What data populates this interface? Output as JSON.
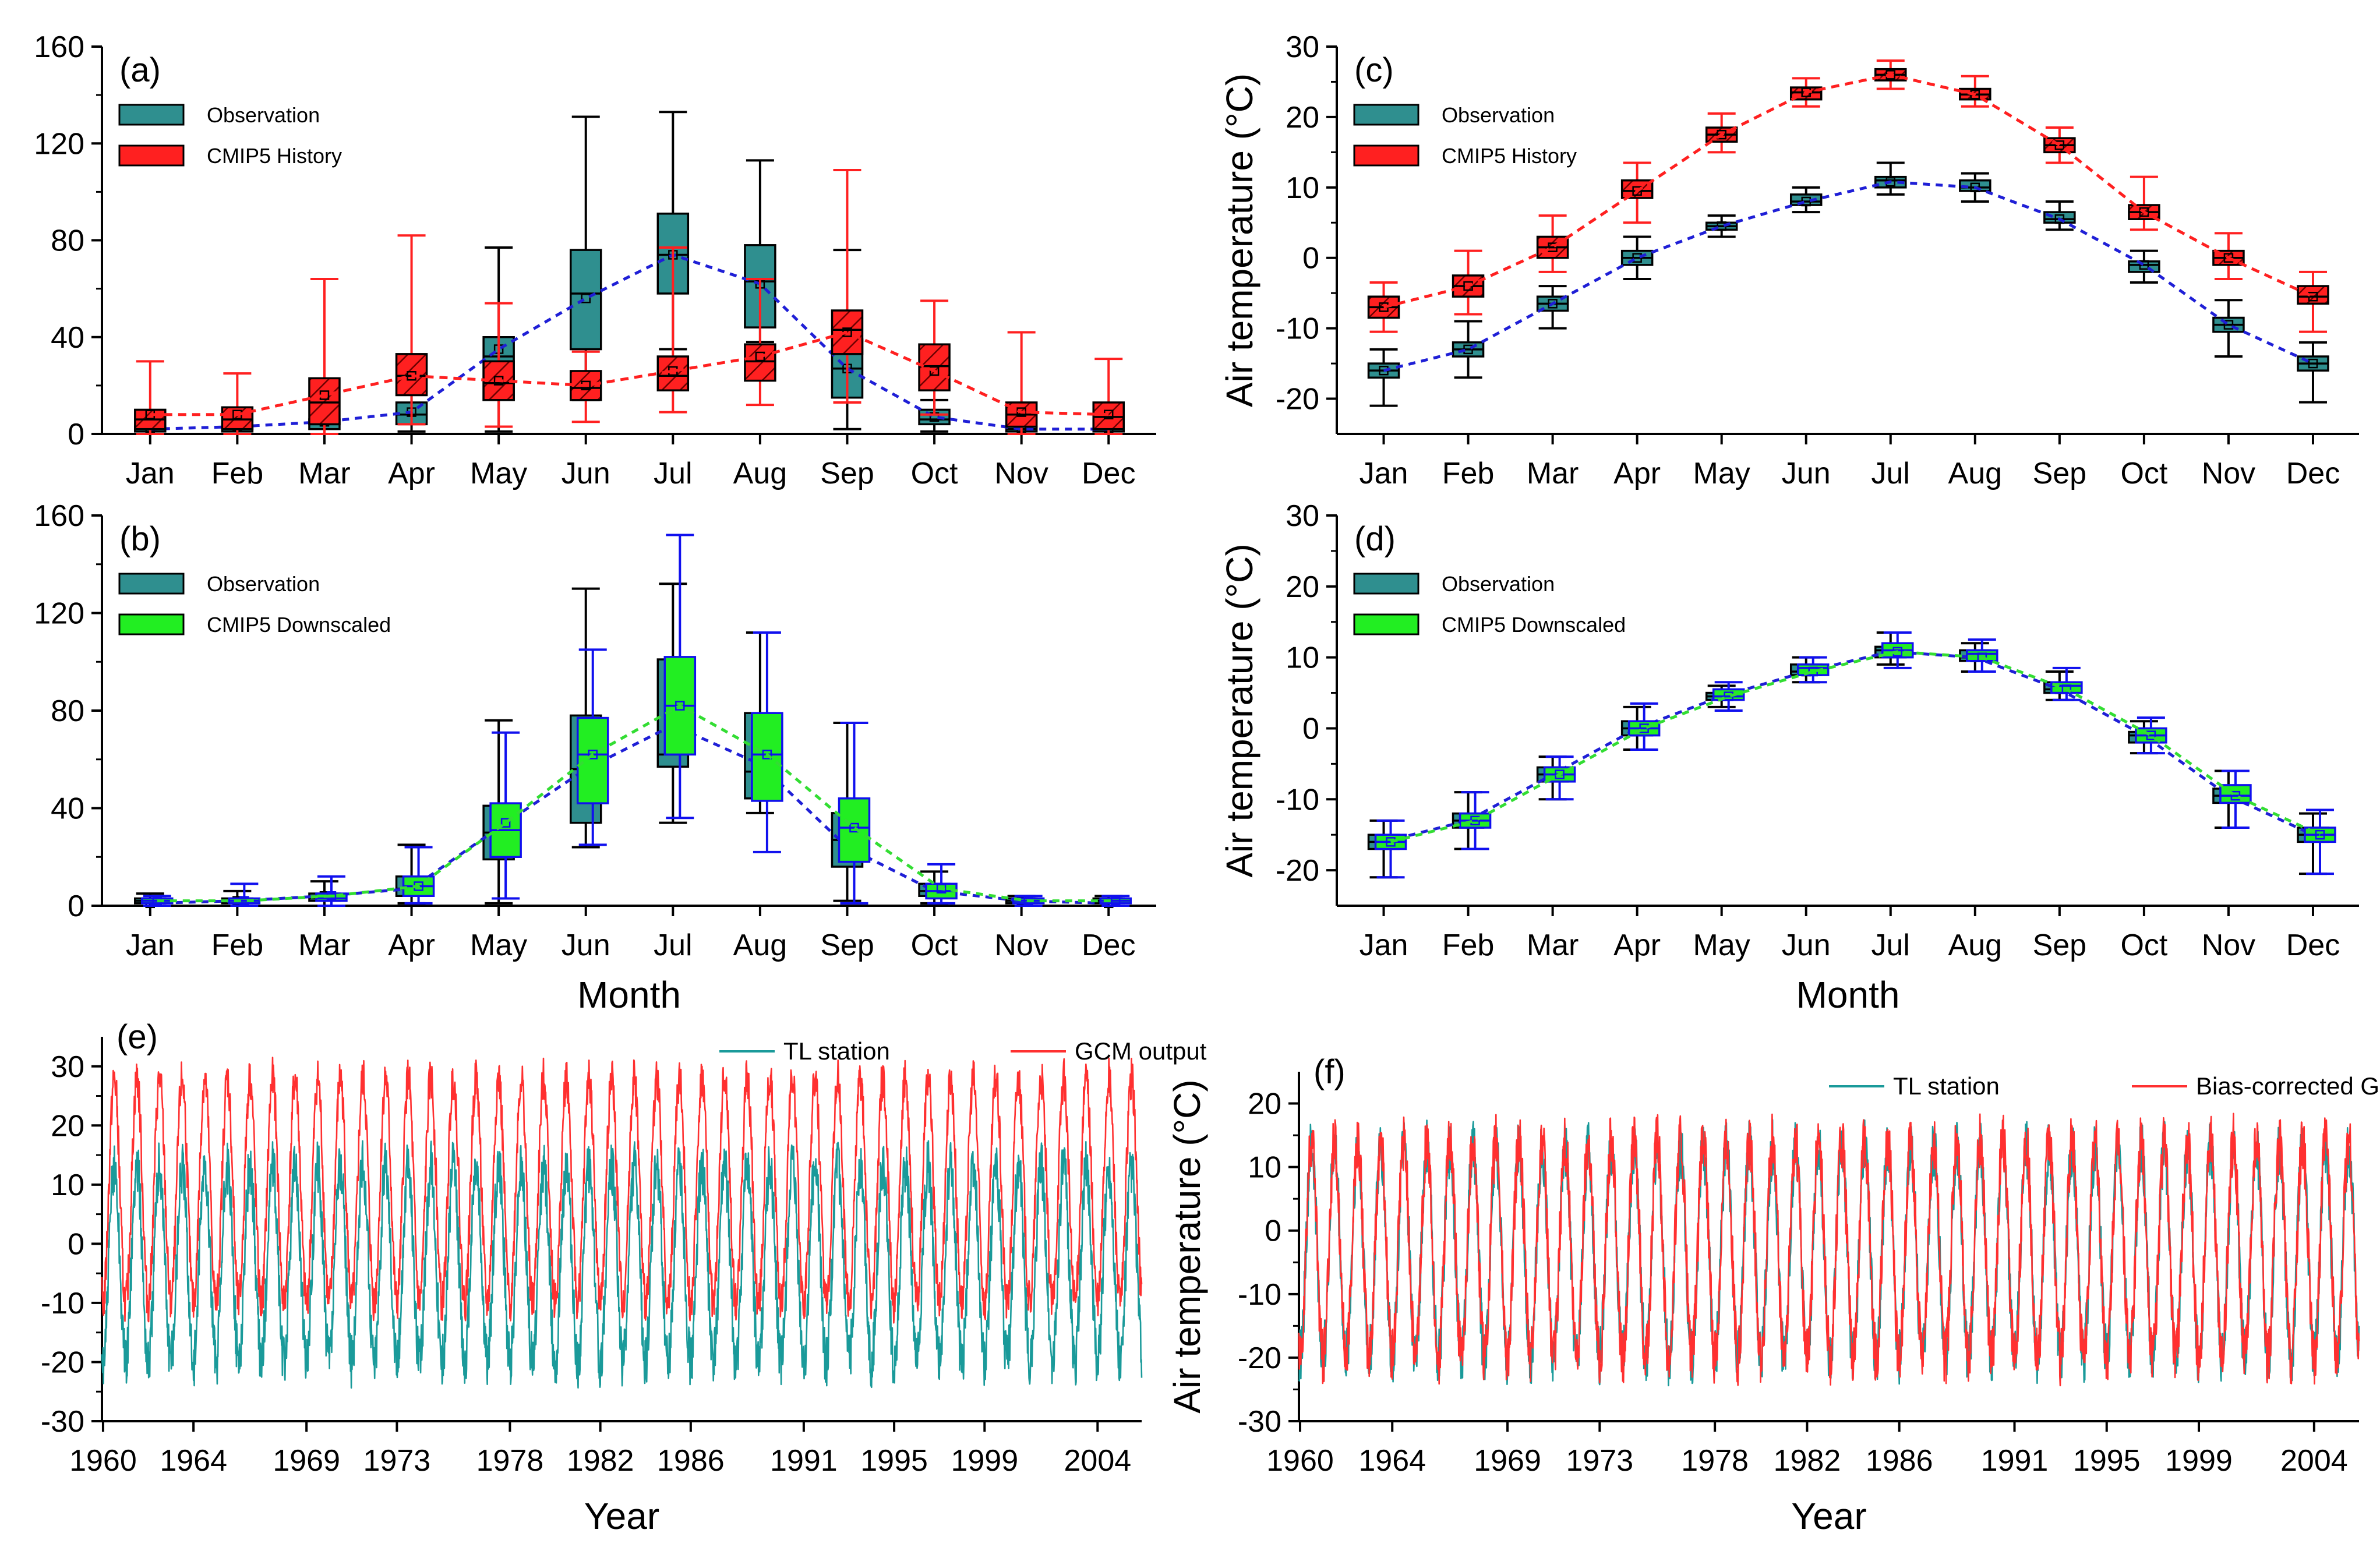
{
  "colors": {
    "obs_fill": "#2f8f8f",
    "hist_fill": "#ff2020",
    "down_fill": "#22ee22",
    "down_edge": "#1010ee",
    "obs_line": "#1f1fd6",
    "hist_line": "#ff2020",
    "down_line": "#33dd33",
    "ts_obs": "#1a9a9a",
    "ts_gcm": "#ff3030"
  },
  "chart_data": [
    {
      "id": "a",
      "panel_label": "(a)",
      "type": "box",
      "months": [
        "Jan",
        "Feb",
        "Mar",
        "Apr",
        "May",
        "Jun",
        "Jul",
        "Aug",
        "Sep",
        "Oct",
        "Nov",
        "Dec"
      ],
      "ylim": [
        0,
        160
      ],
      "yticks": [
        "0",
        "40",
        "80",
        "120",
        "160"
      ],
      "legend": [
        "Observation",
        "CMIP5 History"
      ],
      "series": [
        {
          "name": "Observation",
          "role": "obs",
          "stats": [
            [
              0,
              1,
              2,
              3,
              5
            ],
            [
              0,
              1,
              3,
              3,
              6
            ],
            [
              0,
              2,
              4,
              6,
              10
            ],
            [
              1,
              4,
              8,
              13,
              22
            ],
            [
              1,
              14,
              32,
              40,
              77
            ],
            [
              14,
              35,
              58,
              76,
              131
            ],
            [
              35,
              58,
              74,
              91,
              133
            ],
            [
              38,
              44,
              63,
              78,
              113
            ],
            [
              2,
              15,
              27,
              39,
              76
            ],
            [
              1,
              4,
              6,
              10,
              14
            ],
            [
              0,
              1,
              2,
              3,
              5
            ],
            [
              0,
              1,
              2,
              3,
              5
            ]
          ],
          "means": [
            2,
            3,
            5,
            9,
            35,
            56,
            74,
            62,
            27,
            7,
            2,
            2
          ]
        },
        {
          "name": "CMIP5 History",
          "role": "hist",
          "stats": [
            [
              0,
              2,
              6,
              10,
              30
            ],
            [
              0,
              2,
              6,
              11,
              25
            ],
            [
              0,
              4,
              13,
              23,
              64
            ],
            [
              4,
              16,
              24,
              33,
              82
            ],
            [
              3,
              14,
              21,
              30,
              54
            ],
            [
              5,
              14,
              19,
              26,
              34
            ],
            [
              9,
              18,
              24,
              32,
              77
            ],
            [
              12,
              22,
              30,
              37,
              64
            ],
            [
              13,
              33,
              43,
              51,
              109
            ],
            [
              8,
              18,
              28,
              37,
              55
            ],
            [
              0,
              3,
              8,
              13,
              42
            ],
            [
              0,
              2,
              7,
              13,
              31
            ]
          ],
          "means": [
            8,
            8,
            16,
            24,
            22,
            20,
            26,
            32,
            42,
            26,
            9,
            8
          ]
        }
      ]
    },
    {
      "id": "b",
      "panel_label": "(b)",
      "type": "box",
      "months": [
        "Jan",
        "Feb",
        "Mar",
        "Apr",
        "May",
        "Jun",
        "Jul",
        "Aug",
        "Sep",
        "Oct",
        "Nov",
        "Dec"
      ],
      "ylim": [
        0,
        160
      ],
      "yticks": [
        "0",
        "40",
        "80",
        "120",
        "160"
      ],
      "legend": [
        "Observation",
        "CMIP5 Downscaled"
      ],
      "xlabel": "Month",
      "series": [
        {
          "name": "Observation",
          "role": "obs",
          "stats": [
            [
              0,
              1,
              2,
              3,
              5
            ],
            [
              0,
              1,
              2,
              3,
              6
            ],
            [
              0,
              2,
              3,
              5,
              10
            ],
            [
              1,
              4,
              7,
              12,
              25
            ],
            [
              1,
              19,
              30,
              41,
              76
            ],
            [
              24,
              34,
              56,
              78,
              130
            ],
            [
              34,
              57,
              62,
              101,
              132
            ],
            [
              38,
              44,
              55,
              79,
              112
            ],
            [
              2,
              16,
              27,
              38,
              75
            ],
            [
              1,
              4,
              6,
              9,
              14
            ],
            [
              0,
              1,
              2,
              3,
              4
            ],
            [
              0,
              1,
              2,
              3,
              4
            ]
          ],
          "means": [
            1,
            2,
            4,
            7,
            32,
            56,
            74,
            58,
            24,
            6,
            2,
            1
          ]
        },
        {
          "name": "CMIP5 Downscaled",
          "role": "down",
          "stats": [
            [
              0,
              1,
              2,
              3,
              4
            ],
            [
              0,
              1,
              2,
              3,
              9
            ],
            [
              0,
              2,
              3,
              5,
              12
            ],
            [
              1,
              4,
              8,
              12,
              24
            ],
            [
              3,
              20,
              31,
              42,
              71
            ],
            [
              25,
              42,
              62,
              77,
              105
            ],
            [
              36,
              62,
              82,
              102,
              152
            ],
            [
              22,
              43,
              62,
              79,
              112
            ],
            [
              1,
              18,
              32,
              44,
              75
            ],
            [
              1,
              3,
              6,
              9,
              17
            ],
            [
              0,
              1,
              2,
              3,
              4
            ],
            [
              0,
              1,
              2,
              3,
              4
            ]
          ],
          "means": [
            2,
            2,
            4,
            8,
            34,
            62,
            82,
            62,
            32,
            7,
            2,
            2
          ]
        }
      ]
    },
    {
      "id": "c",
      "panel_label": "(c)",
      "type": "box",
      "months": [
        "Jan",
        "Feb",
        "Mar",
        "Apr",
        "May",
        "Jun",
        "Jul",
        "Aug",
        "Sep",
        "Oct",
        "Nov",
        "Dec"
      ],
      "ylim": [
        -25,
        30
      ],
      "yticks": [
        "-20",
        "-10",
        "0",
        "10",
        "20",
        "30"
      ],
      "ylabel": "Air temperature (°C)",
      "legend": [
        "Observation",
        "CMIP5 History"
      ],
      "series": [
        {
          "name": "Observation",
          "role": "obs",
          "stats": [
            [
              -21,
              -17,
              -16,
              -15,
              -13
            ],
            [
              -17,
              -14,
              -13,
              -12,
              -9
            ],
            [
              -10,
              -7.5,
              -6.5,
              -5.5,
              -4
            ],
            [
              -3,
              -1,
              0,
              1,
              3
            ],
            [
              3,
              4,
              4.5,
              5,
              6
            ],
            [
              6.5,
              7.5,
              8,
              9,
              10
            ],
            [
              9,
              10,
              11,
              11.5,
              13.5
            ],
            [
              8,
              9.5,
              10,
              11,
              12
            ],
            [
              4,
              5,
              5.5,
              6.5,
              8
            ],
            [
              -3.5,
              -2,
              -1,
              -0.5,
              1
            ],
            [
              -14,
              -10.5,
              -9.5,
              -8.5,
              -6
            ],
            [
              -20.5,
              -16,
              -15,
              -14,
              -12
            ]
          ],
          "means": [
            -16,
            -13,
            -6.5,
            0,
            4.5,
            8,
            10.8,
            10,
            5.5,
            -1,
            -9.5,
            -15
          ]
        },
        {
          "name": "CMIP5 History",
          "role": "hist",
          "stats": [
            [
              -10.5,
              -8.5,
              -7,
              -5.5,
              -3.5
            ],
            [
              -8,
              -5.5,
              -4,
              -2.5,
              1
            ],
            [
              -2,
              0,
              1.5,
              3,
              6
            ],
            [
              5,
              8.5,
              9.5,
              11,
              13.5
            ],
            [
              15,
              16.5,
              17.5,
              18.5,
              20.5
            ],
            [
              21.5,
              22.5,
              23.5,
              24.2,
              25.5
            ],
            [
              24,
              25.2,
              26,
              26.8,
              28
            ],
            [
              21.5,
              22.5,
              23.2,
              24,
              25.8
            ],
            [
              13.5,
              15,
              16,
              17,
              18.5
            ],
            [
              4,
              5.5,
              6.5,
              7.5,
              11.5
            ],
            [
              -3,
              -1,
              0,
              1,
              3.5
            ],
            [
              -10.5,
              -6.5,
              -5.5,
              -4,
              -2
            ]
          ],
          "means": [
            -7,
            -4,
            1.5,
            9.5,
            17.5,
            23.5,
            26,
            23.2,
            16,
            6.5,
            0,
            -5.5
          ]
        }
      ]
    },
    {
      "id": "d",
      "panel_label": "(d)",
      "type": "box",
      "months": [
        "Jan",
        "Feb",
        "Mar",
        "Apr",
        "May",
        "Jun",
        "Jul",
        "Aug",
        "Sep",
        "Oct",
        "Nov",
        "Dec"
      ],
      "ylim": [
        -25,
        30
      ],
      "yticks": [
        "-20",
        "-10",
        "0",
        "10",
        "20",
        "30"
      ],
      "ylabel": "Air temperature (°C)",
      "xlabel": "Month",
      "legend": [
        "Observation",
        "CMIP5 Downscaled"
      ],
      "series": [
        {
          "name": "Observation",
          "role": "obs",
          "stats": [
            [
              -21,
              -17,
              -16,
              -15,
              -13
            ],
            [
              -17,
              -14,
              -13,
              -12,
              -9
            ],
            [
              -10,
              -7.5,
              -6.5,
              -5.5,
              -4
            ],
            [
              -3,
              -1,
              0,
              1,
              3
            ],
            [
              3,
              4,
              4.5,
              5,
              6
            ],
            [
              6.5,
              7.5,
              8,
              9,
              10
            ],
            [
              9,
              10,
              11,
              11.5,
              13.5
            ],
            [
              8,
              9.5,
              10,
              11,
              12
            ],
            [
              4,
              5,
              5.5,
              6.5,
              8
            ],
            [
              -3.5,
              -2,
              -1,
              -0.5,
              1
            ],
            [
              -14,
              -10.5,
              -9.5,
              -8.5,
              -6
            ],
            [
              -20.5,
              -16,
              -15,
              -14,
              -12
            ]
          ],
          "means": [
            -16,
            -13,
            -6.5,
            0,
            4.5,
            8,
            10.8,
            10,
            5.5,
            -1,
            -9.5,
            -15
          ]
        },
        {
          "name": "CMIP5 Downscaled",
          "role": "down",
          "stats": [
            [
              -21,
              -17,
              -16,
              -15,
              -13
            ],
            [
              -17,
              -14,
              -13,
              -12,
              -9
            ],
            [
              -10,
              -7.5,
              -6.5,
              -5.5,
              -4
            ],
            [
              -3,
              -1,
              0,
              1,
              3.5
            ],
            [
              2.5,
              4,
              4.5,
              5.5,
              6.5
            ],
            [
              6.5,
              7.5,
              8.5,
              9,
              10
            ],
            [
              8.5,
              10,
              11,
              12,
              13.5
            ],
            [
              8,
              9.5,
              10.5,
              11,
              12.5
            ],
            [
              4,
              5,
              6,
              6.5,
              8.5
            ],
            [
              -3.5,
              -2,
              -1,
              0,
              1.5
            ],
            [
              -14,
              -10.5,
              -9.5,
              -8,
              -6
            ],
            [
              -20.5,
              -16,
              -15,
              -14,
              -11.5
            ]
          ],
          "means": [
            -16,
            -13,
            -6.5,
            0,
            4.5,
            8,
            10.8,
            10,
            5.5,
            -1,
            -9.5,
            -15
          ]
        }
      ]
    },
    {
      "id": "e",
      "panel_label": "(e)",
      "type": "line",
      "xlim": [
        1960,
        2006
      ],
      "ylim": [
        -30,
        35
      ],
      "xticks": [
        "1960",
        "1964",
        "1969",
        "1973",
        "1978",
        "1982",
        "1986",
        "1991",
        "1995",
        "1999",
        "2004"
      ],
      "yticks": [
        "-30",
        "-20",
        "-10",
        "0",
        "10",
        "20",
        "30"
      ],
      "xlabel": "Year",
      "legend": [
        "TL station",
        "GCM output"
      ],
      "series": [
        {
          "name": "TL station",
          "role": "ts_obs",
          "min_approx": -20,
          "max_approx": 13
        },
        {
          "name": "GCM output",
          "role": "ts_gcm",
          "min_approx": -10,
          "max_approx": 28
        }
      ]
    },
    {
      "id": "f",
      "panel_label": "(f)",
      "type": "line",
      "xlim": [
        1960,
        2006
      ],
      "ylim": [
        -30,
        25
      ],
      "xticks": [
        "1960",
        "1964",
        "1969",
        "1973",
        "1978",
        "1982",
        "1986",
        "1991",
        "1995",
        "1999",
        "2004"
      ],
      "yticks": [
        "-30",
        "-20",
        "-10",
        "0",
        "10",
        "20"
      ],
      "xlabel": "Year",
      "ylabel": "Air temperature (°C)",
      "legend": [
        "TL station",
        "Bias-corrected GCM"
      ],
      "series": [
        {
          "name": "TL station",
          "role": "ts_obs",
          "min_approx": -20,
          "max_approx": 13
        },
        {
          "name": "Bias-corrected GCM",
          "role": "ts_gcm",
          "min_approx": -20,
          "max_approx": 14
        }
      ]
    }
  ]
}
